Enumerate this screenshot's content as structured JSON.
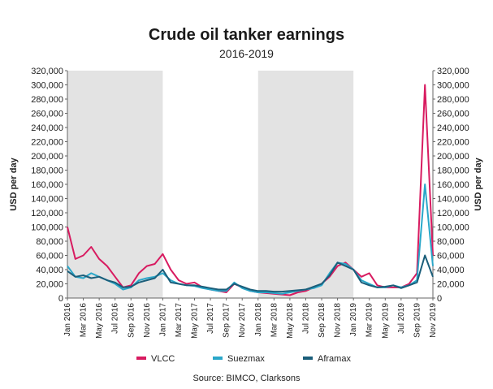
{
  "title": "Crude oil tanker earnings",
  "subtitle": "2016-2019",
  "source": "Source: BIMCO, Clarksons",
  "chart_data": {
    "type": "line",
    "title": "Crude oil tanker earnings",
    "subtitle": "2016-2019",
    "ylabel_left": "USD per day",
    "ylabel_right": "USD per day",
    "ylim": [
      0,
      320000
    ],
    "yticks": [
      "0",
      "20,000",
      "40,000",
      "60,000",
      "80,000",
      "100,000",
      "120,000",
      "140,000",
      "160,000",
      "180,000",
      "200,000",
      "220,000",
      "240,000",
      "260,000",
      "280,000",
      "300,000",
      "320,000"
    ],
    "x_tick_labels": [
      "Jan 2016",
      "Mar 2016",
      "May 2016",
      "Jul 2016",
      "Sep 2016",
      "Nov 2016",
      "Jan 2017",
      "Mar 2017",
      "May 2017",
      "Jul 2017",
      "Sep 2017",
      "Nov 2017",
      "Jan 2018",
      "Mar 2018",
      "May 2018",
      "Jul 2018",
      "Sep 2018",
      "Nov 2018",
      "Jan 2019",
      "Mar 2019",
      "May 2019",
      "Jul 2019",
      "Sep 2019",
      "Nov 2019"
    ],
    "shaded_periods": [
      {
        "start": "Jan 2016",
        "end": "Jan 2017"
      },
      {
        "start": "Jan 2018",
        "end": "Jan 2019"
      }
    ],
    "grid": false,
    "legend_position": "bottom",
    "x": [
      "Jan 2016",
      "Feb 2016",
      "Mar 2016",
      "Apr 2016",
      "May 2016",
      "Jun 2016",
      "Jul 2016",
      "Aug 2016",
      "Sep 2016",
      "Oct 2016",
      "Nov 2016",
      "Dec 2016",
      "Jan 2017",
      "Feb 2017",
      "Mar 2017",
      "Apr 2017",
      "May 2017",
      "Jun 2017",
      "Jul 2017",
      "Aug 2017",
      "Sep 2017",
      "Oct 2017",
      "Nov 2017",
      "Dec 2017",
      "Jan 2018",
      "Feb 2018",
      "Mar 2018",
      "Apr 2018",
      "May 2018",
      "Jun 2018",
      "Jul 2018",
      "Aug 2018",
      "Sep 2018",
      "Oct 2018",
      "Nov 2018",
      "Dec 2018",
      "Jan 2019",
      "Feb 2019",
      "Mar 2019",
      "Apr 2019",
      "May 2019",
      "Jun 2019",
      "Jul 2019",
      "Aug 2019",
      "Sep 2019",
      "Oct 2019",
      "Nov 2019"
    ],
    "series": [
      {
        "name": "VLCC",
        "color": "#d81b60",
        "values": [
          100000,
          55000,
          60000,
          72000,
          55000,
          45000,
          30000,
          15000,
          18000,
          35000,
          45000,
          48000,
          62000,
          40000,
          25000,
          20000,
          22000,
          15000,
          12000,
          10000,
          8000,
          20000,
          15000,
          10000,
          8000,
          7000,
          6000,
          5000,
          4000,
          8000,
          10000,
          15000,
          20000,
          30000,
          45000,
          50000,
          40000,
          30000,
          35000,
          18000,
          15000,
          15000,
          15000,
          20000,
          35000,
          300000,
          60000
        ]
      },
      {
        "name": "Suezmax",
        "color": "#2aa7c9",
        "values": [
          45000,
          30000,
          28000,
          35000,
          30000,
          25000,
          20000,
          12000,
          15000,
          25000,
          28000,
          30000,
          35000,
          25000,
          20000,
          18000,
          17000,
          14000,
          12000,
          10000,
          10000,
          22000,
          14000,
          10000,
          8000,
          8000,
          7000,
          6000,
          8000,
          10000,
          12000,
          14000,
          18000,
          35000,
          50000,
          48000,
          40000,
          25000,
          20000,
          15000,
          15000,
          18000,
          15000,
          18000,
          25000,
          160000,
          45000
        ]
      },
      {
        "name": "Aframax",
        "color": "#1b5e7a",
        "values": [
          38000,
          30000,
          32000,
          28000,
          30000,
          25000,
          22000,
          15000,
          16000,
          22000,
          25000,
          28000,
          40000,
          22000,
          20000,
          18000,
          18000,
          16000,
          14000,
          12000,
          12000,
          20000,
          16000,
          12000,
          10000,
          10000,
          9000,
          9000,
          10000,
          11000,
          12000,
          16000,
          20000,
          32000,
          50000,
          45000,
          40000,
          22000,
          18000,
          15000,
          16000,
          18000,
          14000,
          18000,
          22000,
          60000,
          30000
        ]
      }
    ]
  }
}
